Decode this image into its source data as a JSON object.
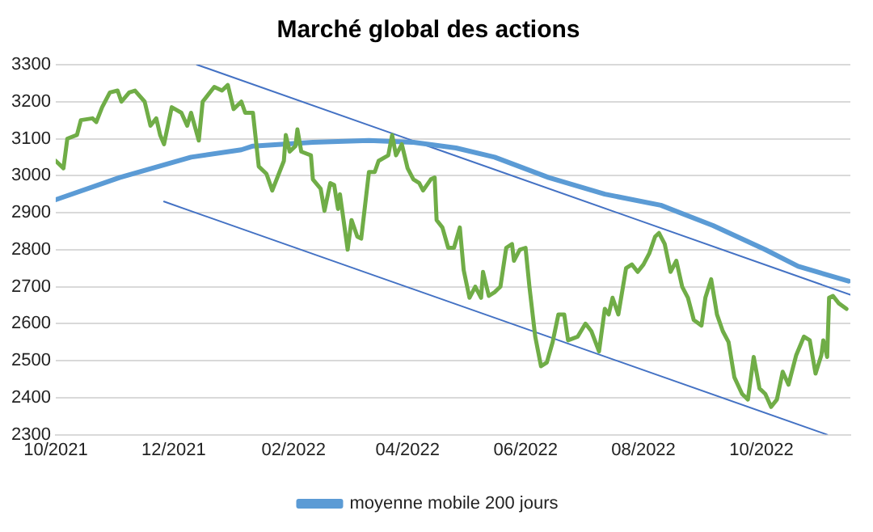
{
  "chart_data": {
    "type": "line",
    "title": "Marché global des actions",
    "xlim": [
      "2021-10-01",
      "2022-11-16"
    ],
    "xticks": [
      {
        "value": "2021-10-01",
        "label": "10/2021"
      },
      {
        "value": "2021-12-01",
        "label": "12/2021"
      },
      {
        "value": "2022-02-01",
        "label": "02/2022"
      },
      {
        "value": "2022-04-01",
        "label": "04/2022"
      },
      {
        "value": "2022-06-01",
        "label": "06/2022"
      },
      {
        "value": "2022-08-01",
        "label": "08/2022"
      },
      {
        "value": "2022-10-01",
        "label": "10/2022"
      }
    ],
    "ylim": [
      2300,
      3300
    ],
    "yticks": [
      2300,
      2400,
      2500,
      2600,
      2700,
      2800,
      2900,
      3000,
      3100,
      3200,
      3300
    ],
    "grid": "y",
    "legend": "bottom",
    "marker": "none",
    "line_style": "solid",
    "series": [
      {
        "color": "#70ad47",
        "x": [
          "2021-10-01",
          "2021-10-05",
          "2021-10-07",
          "2021-10-12",
          "2021-10-14",
          "2021-10-20",
          "2021-10-22",
          "2021-10-25",
          "2021-10-29",
          "2021-11-02",
          "2021-11-04",
          "2021-11-08",
          "2021-11-11",
          "2021-11-16",
          "2021-11-19",
          "2021-11-22",
          "2021-11-24",
          "2021-11-26",
          "2021-11-30",
          "2021-12-05",
          "2021-12-08",
          "2021-12-10",
          "2021-12-14",
          "2021-12-16",
          "2021-12-22",
          "2021-12-26",
          "2021-12-29",
          "2022-01-01",
          "2022-01-05",
          "2022-01-07",
          "2022-01-11",
          "2022-01-14",
          "2022-01-18",
          "2022-01-21",
          "2022-01-27",
          "2022-01-28",
          "2022-01-30",
          "2022-02-02",
          "2022-02-03",
          "2022-02-05",
          "2022-02-10",
          "2022-02-11",
          "2022-02-15",
          "2022-02-17",
          "2022-02-20",
          "2022-02-22",
          "2022-02-24",
          "2022-02-25",
          "2022-03-01",
          "2022-03-03",
          "2022-03-06",
          "2022-03-08",
          "2022-03-12",
          "2022-03-15",
          "2022-03-17",
          "2022-03-22",
          "2022-03-24",
          "2022-03-26",
          "2022-03-29",
          "2022-04-01",
          "2022-04-04",
          "2022-04-07",
          "2022-04-09",
          "2022-04-13",
          "2022-04-15",
          "2022-04-16",
          "2022-04-19",
          "2022-04-22",
          "2022-04-25",
          "2022-04-28",
          "2022-04-30",
          "2022-05-03",
          "2022-05-06",
          "2022-05-09",
          "2022-05-10",
          "2022-05-13",
          "2022-05-16",
          "2022-05-19",
          "2022-05-22",
          "2022-05-25",
          "2022-05-26",
          "2022-05-29",
          "2022-06-01",
          "2022-06-03",
          "2022-06-06",
          "2022-06-09",
          "2022-06-12",
          "2022-06-15",
          "2022-06-18",
          "2022-06-21",
          "2022-06-23",
          "2022-06-28",
          "2022-07-02",
          "2022-07-05",
          "2022-07-09",
          "2022-07-12",
          "2022-07-14",
          "2022-07-16",
          "2022-07-19",
          "2022-07-23",
          "2022-07-26",
          "2022-07-29",
          "2022-08-01",
          "2022-08-04",
          "2022-08-07",
          "2022-08-09",
          "2022-08-12",
          "2022-08-15",
          "2022-08-18",
          "2022-08-21",
          "2022-08-24",
          "2022-08-27",
          "2022-08-31",
          "2022-09-02",
          "2022-09-05",
          "2022-09-08",
          "2022-09-11",
          "2022-09-14",
          "2022-09-17",
          "2022-09-21",
          "2022-09-24",
          "2022-09-27",
          "2022-09-30",
          "2022-10-03",
          "2022-10-06",
          "2022-10-09",
          "2022-10-12",
          "2022-10-15",
          "2022-10-19",
          "2022-10-23",
          "2022-10-26",
          "2022-10-29",
          "2022-11-01",
          "2022-11-02",
          "2022-11-04",
          "2022-11-05",
          "2022-11-07",
          "2022-11-10",
          "2022-11-14"
        ],
        "values": [
          3040,
          3020,
          3100,
          3110,
          3150,
          3155,
          3145,
          3185,
          3225,
          3230,
          3200,
          3225,
          3230,
          3200,
          3135,
          3155,
          3110,
          3085,
          3185,
          3170,
          3135,
          3170,
          3095,
          3200,
          3240,
          3230,
          3245,
          3180,
          3200,
          3170,
          3170,
          3025,
          3005,
          2960,
          3040,
          3110,
          3065,
          3080,
          3125,
          3065,
          3055,
          2990,
          2965,
          2905,
          2980,
          2975,
          2910,
          2950,
          2800,
          2880,
          2835,
          2830,
          3010,
          3010,
          3040,
          3055,
          3110,
          3055,
          3085,
          3020,
          2990,
          2980,
          2960,
          2990,
          2995,
          2880,
          2860,
          2805,
          2805,
          2860,
          2745,
          2670,
          2700,
          2670,
          2740,
          2675,
          2685,
          2700,
          2805,
          2815,
          2770,
          2800,
          2805,
          2700,
          2565,
          2485,
          2495,
          2550,
          2625,
          2625,
          2555,
          2565,
          2600,
          2580,
          2525,
          2640,
          2625,
          2670,
          2625,
          2750,
          2760,
          2740,
          2760,
          2790,
          2835,
          2845,
          2815,
          2740,
          2770,
          2700,
          2670,
          2610,
          2595,
          2670,
          2720,
          2625,
          2580,
          2550,
          2455,
          2410,
          2395,
          2510,
          2425,
          2410,
          2375,
          2395,
          2470,
          2435,
          2515,
          2565,
          2555,
          2465,
          2515,
          2555,
          2510,
          2670,
          2675,
          2655,
          2640
        ]
      },
      {
        "name": "moyenne mobile 200 jours",
        "color": "#5b9bd5",
        "x": [
          "2021-10-01",
          "2021-11-03",
          "2021-12-10",
          "2022-01-05",
          "2022-01-11",
          "2022-02-11",
          "2022-03-12",
          "2022-04-04",
          "2022-04-26",
          "2022-05-16",
          "2022-06-13",
          "2022-07-12",
          "2022-08-10",
          "2022-09-06",
          "2022-10-03",
          "2022-10-20",
          "2022-11-15"
        ],
        "values": [
          2935,
          2995,
          3050,
          3070,
          3080,
          3090,
          3095,
          3090,
          3075,
          3050,
          2995,
          2950,
          2920,
          2865,
          2800,
          2755,
          2715
        ]
      },
      {
        "type": "line",
        "color": "#4472c4",
        "x": [
          "2021-12-13",
          "2022-11-16"
        ],
        "values": [
          3300,
          2678
        ]
      },
      {
        "type": "line",
        "color": "#4472c4",
        "x": [
          "2021-11-26",
          "2022-11-04"
        ],
        "values": [
          2930,
          2300
        ]
      }
    ]
  }
}
